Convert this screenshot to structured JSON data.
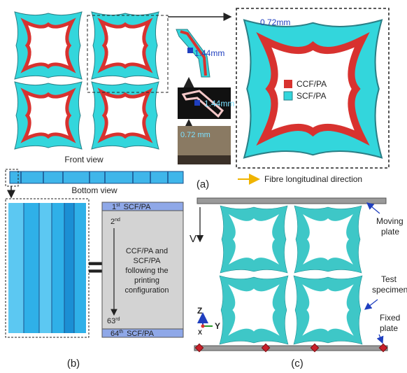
{
  "panel_a": {
    "front_view": "Front view",
    "dim_top": "0.72mm",
    "dim_photo_1": "1.44mm",
    "dim_photo_2": "1.44mm",
    "dim_photo_3": "0.72 mm",
    "legend": [
      "CCF/PA",
      "SCF/PA"
    ],
    "arrow_note": "Fibre longitudinal direction",
    "label": "(a)"
  },
  "panel_b": {
    "bottom_view": "Bottom view",
    "equals": "=",
    "first": {
      "number": "1",
      "suffix": "st",
      "material": "SCF/PA"
    },
    "second": {
      "number": "2",
      "suffix": "nd"
    },
    "middle_text": [
      "CCF/PA and",
      "SCF/PA",
      "following the",
      "printing",
      "configuration"
    ],
    "last_ccf": {
      "number": "63",
      "suffix": "rd"
    },
    "last": {
      "number": "64",
      "suffix": "th",
      "material": "SCF/PA"
    },
    "label": "(b)"
  },
  "panel_c": {
    "velocity": "V",
    "moving_plate": [
      "Moving",
      "plate"
    ],
    "test_specimen": [
      "Test",
      "specimen"
    ],
    "fixed_plate": [
      "Fixed",
      "plate"
    ],
    "axes": [
      "Z",
      "Y",
      "X"
    ],
    "label": "(c)"
  }
}
